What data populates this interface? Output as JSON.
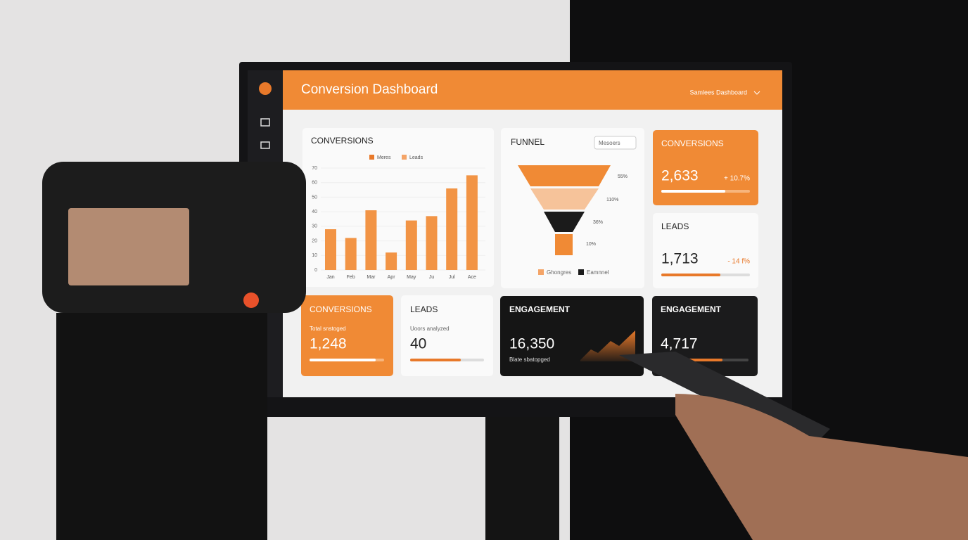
{
  "header": {
    "title": "Conversion Dashboard",
    "menu": "Samlees Dashboard"
  },
  "conversions_chart": {
    "title": "CONVERSIONS",
    "legend": [
      {
        "name": "Meres",
        "color": "#e8792a"
      },
      {
        "name": "Leads",
        "color": "#f4a467"
      }
    ],
    "categories": [
      "Jan",
      "Feb",
      "Mar",
      "Apr",
      "May",
      "Ju",
      "Jul",
      "Ace"
    ],
    "values": [
      28,
      22,
      41,
      12,
      34,
      37,
      56,
      65
    ],
    "color": "#f29445",
    "ylim": [
      0,
      70
    ],
    "yticks": [
      0,
      10,
      20,
      30,
      40,
      50,
      60,
      70
    ]
  },
  "funnel": {
    "title": "FUNNEL",
    "dropdown": "Mesoers",
    "stage_labels": [
      "55%",
      "110%",
      "36%",
      "10%"
    ],
    "legend": [
      "Ghongres",
      "Eamnnel"
    ]
  },
  "cards": [
    {
      "title": "CONVERSIONS",
      "value": "2,633",
      "change": "+ 10.7%"
    },
    {
      "title": "LEADS",
      "value": "1,713",
      "change": "- 14 f%"
    },
    {
      "title": "CONVERSIONS",
      "subtitle": "Total snstoged",
      "value": "1,248"
    },
    {
      "title": "LEADS",
      "subtitle": "Uoors analyzed",
      "value": "40"
    },
    {
      "title": "ENGAGEMENT",
      "value": "16,350",
      "subtitle": "Blate sbatopged"
    },
    {
      "title": "ENGAGEMENT",
      "value": "4,717"
    }
  ]
}
